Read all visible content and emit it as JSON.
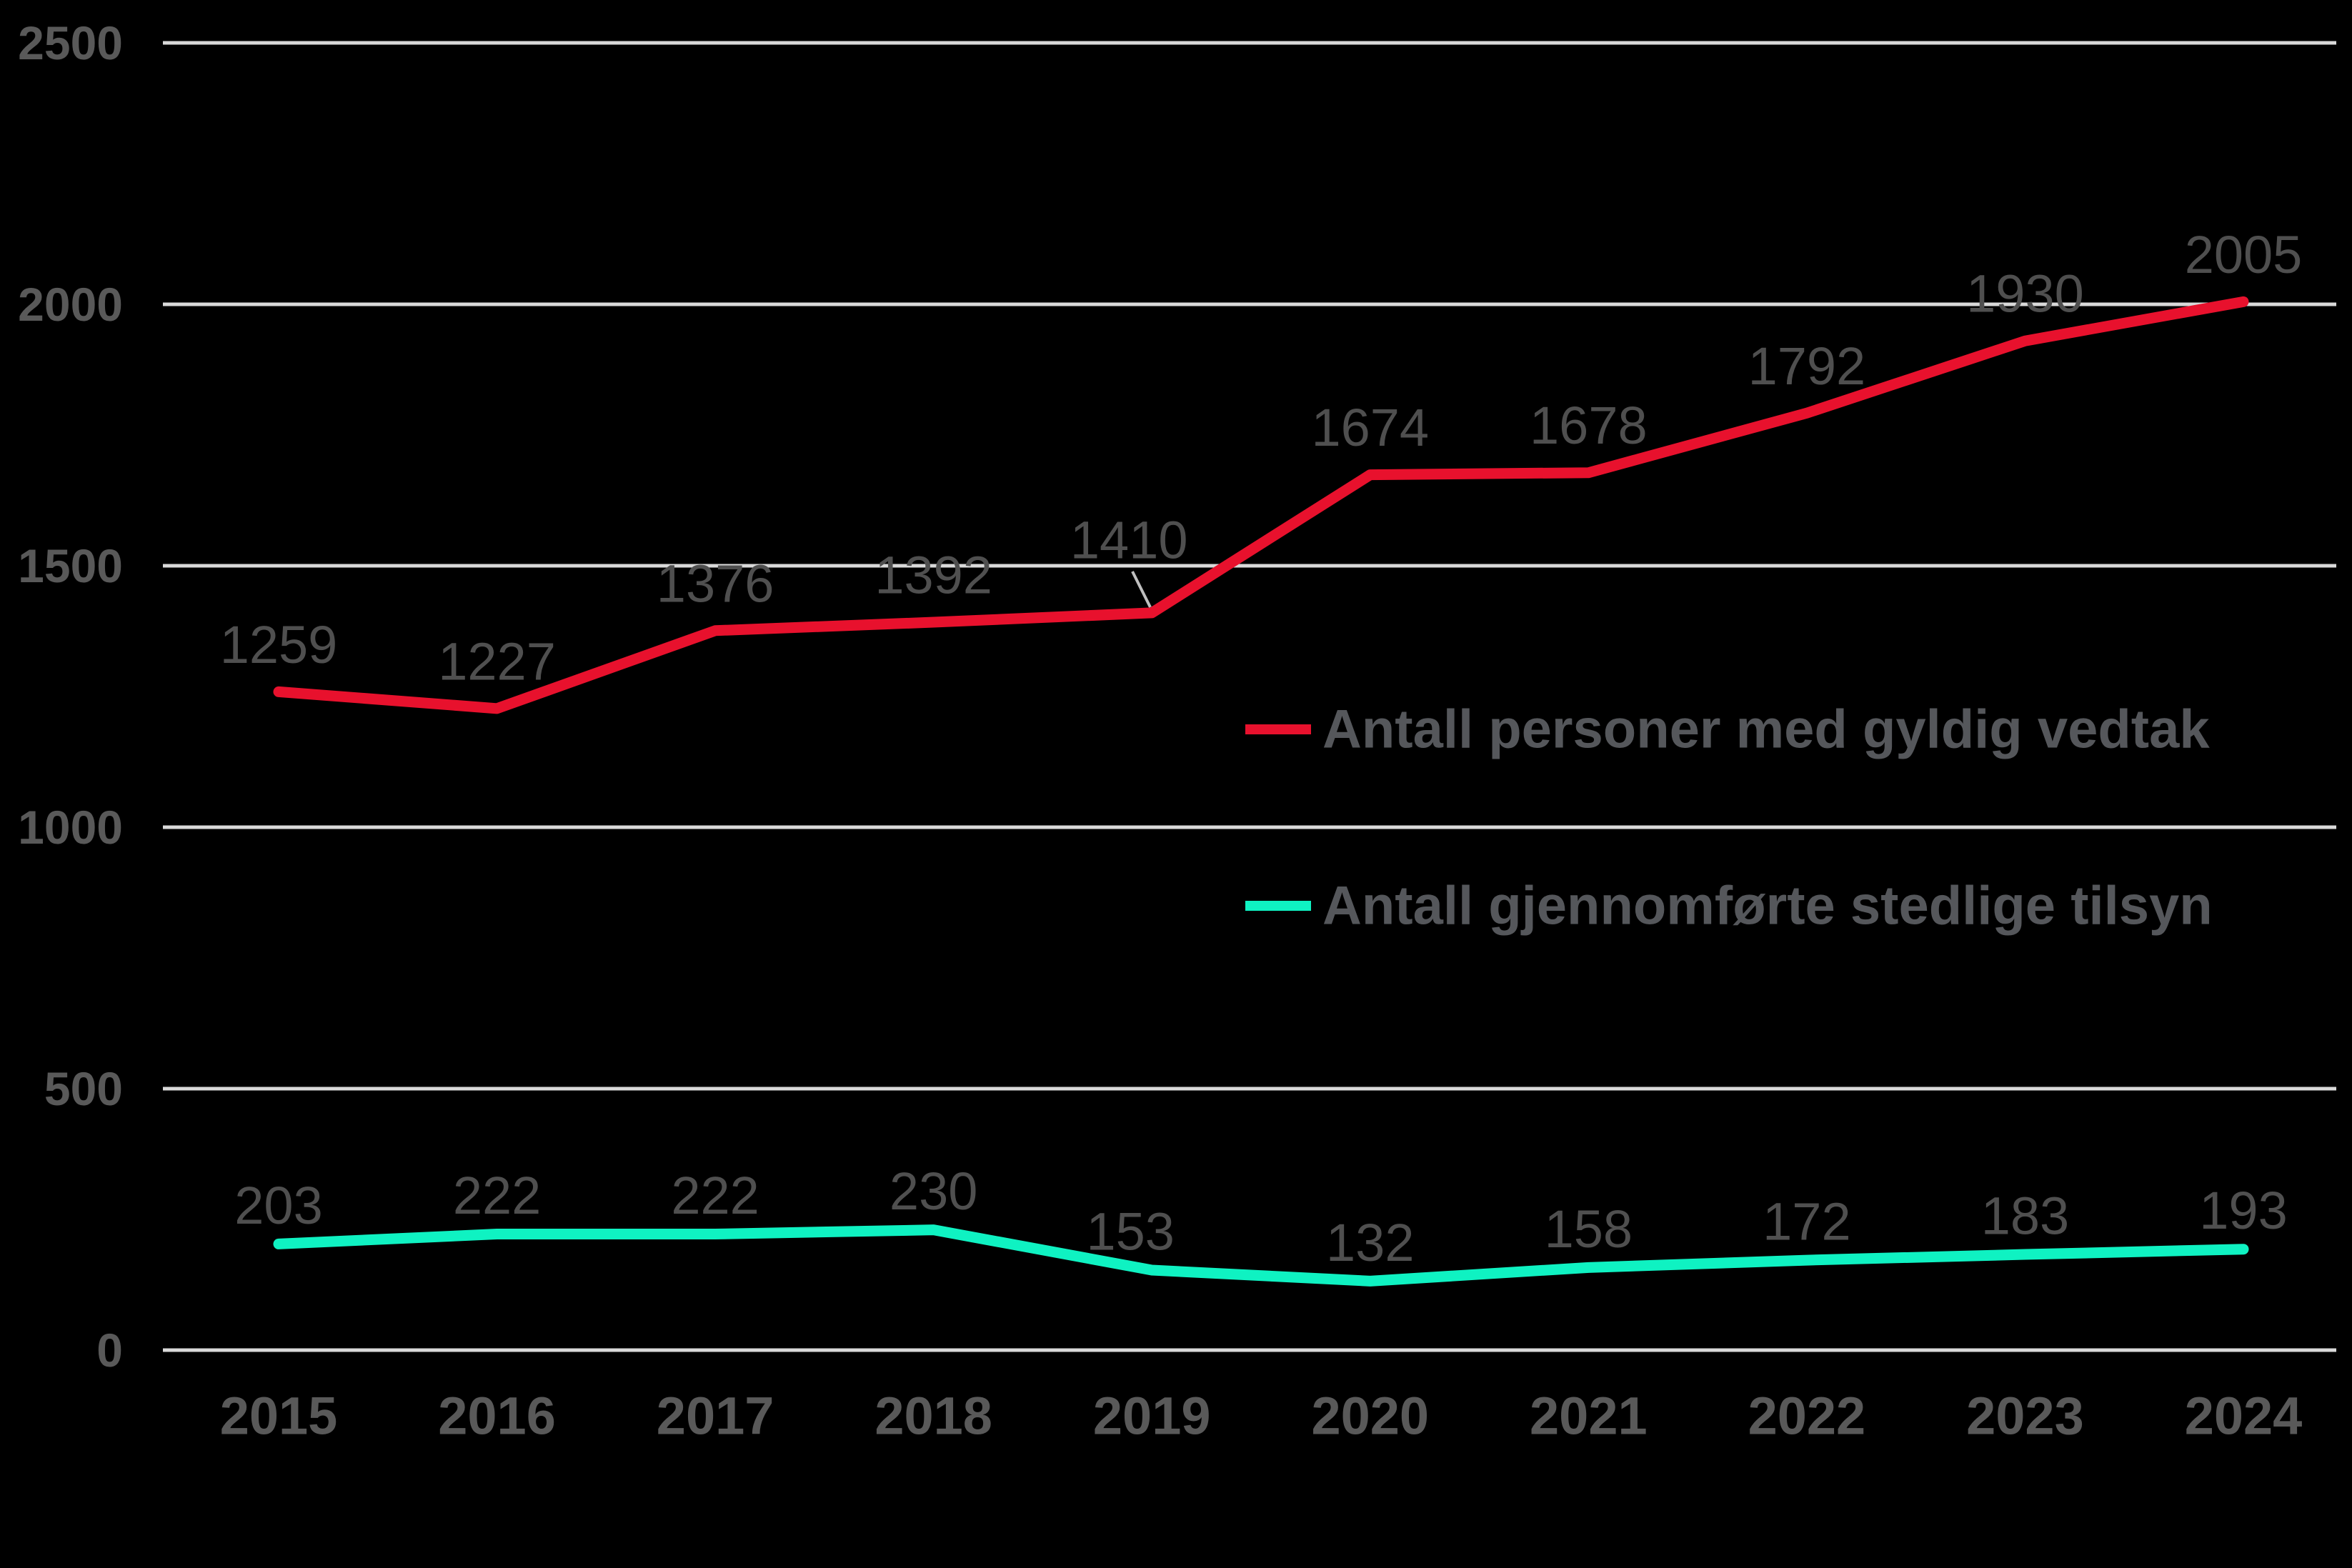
{
  "chart_data": {
    "type": "line",
    "title": "",
    "xlabel": "",
    "ylabel": "",
    "background_color": "#000000",
    "gridline_color": "#d9d9d9",
    "axis_label_color": "#595959",
    "data_label_color": "#4f4f4f",
    "legend_text_color": "#55575b",
    "leader_line_color": "#bfbfbf",
    "grid": true,
    "legend_position": "center-right",
    "ylim": [
      0,
      2500
    ],
    "yticks": [
      "0",
      "500",
      "1000",
      "1500",
      "2000",
      "2500"
    ],
    "ytick_values": [
      0,
      500,
      1000,
      1500,
      2000,
      2500
    ],
    "categories": [
      "2015",
      "2016",
      "2017",
      "2018",
      "2019",
      "2020",
      "2021",
      "2022",
      "2023",
      "2024"
    ],
    "series": [
      {
        "name": "Antall personer med gyldig vedtak",
        "color": "#e8112d",
        "values": [
          1259,
          1227,
          1376,
          1392,
          1410,
          1674,
          1678,
          1792,
          1930,
          2005
        ],
        "labels": [
          "1259",
          "1227",
          "1376",
          "1392",
          "1410",
          "1674",
          "1678",
          "1792",
          "1930",
          "2005"
        ]
      },
      {
        "name": "Antall gjennomførte stedlige tilsyn",
        "color": "#0ff2c2",
        "values": [
          203,
          222,
          222,
          230,
          153,
          132,
          158,
          172,
          183,
          193
        ],
        "labels": [
          "203",
          "222",
          "222",
          "230",
          "153",
          "132",
          "158",
          "172",
          "183",
          "193"
        ]
      }
    ]
  }
}
